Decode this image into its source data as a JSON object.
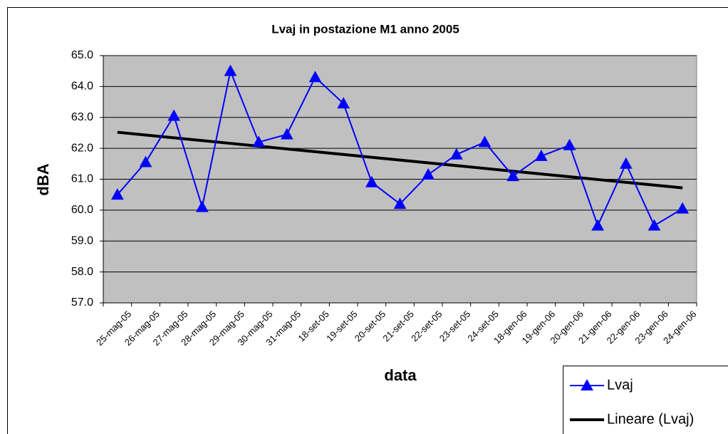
{
  "chart_data": {
    "type": "line",
    "title": "Lvaj in postazione M1 anno 2005",
    "x_label": "data",
    "y_label": "dBA",
    "categories": [
      "25-mag-05",
      "26-mag-05",
      "27-mag-05",
      "28-mag-05",
      "29-mag-05",
      "30-mag-05",
      "31-mag-05",
      "18-set-05",
      "19-set-05",
      "20-set-05",
      "21-set-05",
      "22-set-05",
      "23-set-05",
      "24-set-05",
      "18-gen-06",
      "19-gen-06",
      "20-gen-06",
      "21-gen-06",
      "22-gen-06",
      "23-gen-06",
      "24-gen-06"
    ],
    "series": [
      {
        "name": "Lvaj",
        "color": "#0000ff",
        "marker": "triangle",
        "values": [
          60.5,
          61.55,
          63.05,
          60.1,
          64.5,
          62.2,
          62.45,
          64.3,
          63.45,
          60.9,
          60.2,
          61.15,
          61.8,
          62.2,
          61.1,
          61.75,
          62.1,
          59.5,
          61.5,
          59.5,
          60.05
        ]
      },
      {
        "name": "Lineare (Lvaj)",
        "color": "#000000",
        "values": [
          62.52,
          62.43,
          62.34,
          62.25,
          62.16,
          62.07,
          61.98,
          61.89,
          61.8,
          61.71,
          61.62,
          61.53,
          61.44,
          61.35,
          61.26,
          61.17,
          61.08,
          60.99,
          60.9,
          60.81,
          60.72
        ]
      }
    ],
    "ylim": [
      57,
      65
    ],
    "yticks": [
      {
        "value": 57,
        "label": "57.0"
      },
      {
        "value": 58,
        "label": "58.0"
      },
      {
        "value": 59,
        "label": "59.0"
      },
      {
        "value": 60,
        "label": "60.0"
      },
      {
        "value": 61,
        "label": "61.0"
      },
      {
        "value": 62,
        "label": "62.0"
      },
      {
        "value": 63,
        "label": "63.0"
      },
      {
        "value": 64,
        "label": "64.0"
      },
      {
        "value": 65,
        "label": "65.0"
      }
    ],
    "grid": true,
    "legend": "bottom-right"
  }
}
